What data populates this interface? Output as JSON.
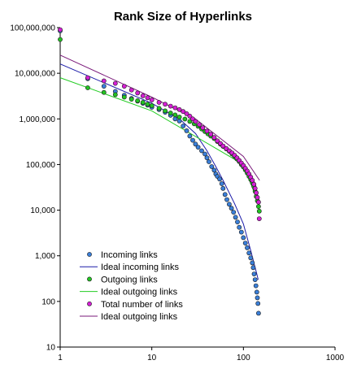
{
  "chart_data": {
    "type": "scatter",
    "title": "Rank Size of Hyperlinks",
    "xlabel": "",
    "ylabel": "",
    "x_scale": "log",
    "y_scale": "log",
    "xlim": [
      1,
      1000
    ],
    "ylim": [
      10,
      100000000
    ],
    "x_ticks": [
      "1",
      "10",
      "100",
      "1000"
    ],
    "y_ticks": [
      "10",
      "100",
      "1,000",
      "10,000",
      "100,000",
      "1,000,000",
      "10,000,000",
      "100,000,000"
    ],
    "grid": false,
    "legend_position": "bottom-left",
    "series": [
      {
        "name": "Incoming links",
        "kind": "points",
        "color": "#3a7fd9",
        "points": [
          [
            1,
            85000000
          ],
          [
            2,
            7600000
          ],
          [
            3,
            5200000
          ],
          [
            4,
            4000000
          ],
          [
            5,
            3300000
          ],
          [
            6,
            2800000
          ],
          [
            7,
            2450000
          ],
          [
            8,
            2200000
          ],
          [
            9,
            2000000
          ],
          [
            10,
            1800000
          ],
          [
            12,
            1600000
          ],
          [
            14,
            1400000
          ],
          [
            16,
            1200000
          ],
          [
            18,
            1000000
          ],
          [
            20,
            900000
          ],
          [
            22,
            700000
          ],
          [
            24,
            550000
          ],
          [
            26,
            420000
          ],
          [
            28,
            340000
          ],
          [
            30,
            280000
          ],
          [
            32,
            240000
          ],
          [
            35,
            200000
          ],
          [
            38,
            170000
          ],
          [
            40,
            140000
          ],
          [
            42,
            115000
          ],
          [
            45,
            90000
          ],
          [
            48,
            75000
          ],
          [
            50,
            62000
          ],
          [
            52,
            55000
          ],
          [
            55,
            48000
          ],
          [
            58,
            38000
          ],
          [
            60,
            30000
          ],
          [
            63,
            22000
          ],
          [
            66,
            17000
          ],
          [
            70,
            13500
          ],
          [
            74,
            11000
          ],
          [
            78,
            9000
          ],
          [
            82,
            7000
          ],
          [
            86,
            5500
          ],
          [
            90,
            4200
          ],
          [
            95,
            3300
          ],
          [
            100,
            2500
          ],
          [
            105,
            1900
          ],
          [
            110,
            1500
          ],
          [
            115,
            1150
          ],
          [
            120,
            900
          ],
          [
            125,
            700
          ],
          [
            128,
            550
          ],
          [
            131,
            400
          ],
          [
            134,
            300
          ],
          [
            137,
            220
          ],
          [
            140,
            160
          ],
          [
            142,
            120
          ],
          [
            144,
            90
          ],
          [
            146,
            55
          ]
        ]
      },
      {
        "name": "Ideal incoming links",
        "kind": "line",
        "color": "#1a1aa8",
        "points": [
          [
            1,
            16000000
          ],
          [
            10,
            2200000
          ],
          [
            20,
            1000000
          ],
          [
            30,
            480000
          ],
          [
            40,
            200000
          ],
          [
            50,
            90000
          ],
          [
            60,
            45000
          ],
          [
            80,
            14000
          ],
          [
            100,
            5000
          ],
          [
            120,
            1300
          ],
          [
            140,
            400
          ],
          [
            145,
            300
          ]
        ]
      },
      {
        "name": "Outgoing links",
        "kind": "points",
        "color": "#22c422",
        "points": [
          [
            1,
            55000000
          ],
          [
            2,
            4800000
          ],
          [
            3,
            3800000
          ],
          [
            4,
            3400000
          ],
          [
            5,
            3000000
          ],
          [
            6,
            2700000
          ],
          [
            7,
            2500000
          ],
          [
            8,
            2300000
          ],
          [
            9,
            2100000
          ],
          [
            10,
            1950000
          ],
          [
            12,
            1700000
          ],
          [
            14,
            1500000
          ],
          [
            16,
            1350000
          ],
          [
            18,
            1220000
          ],
          [
            20,
            1100000
          ],
          [
            23,
            990000
          ],
          [
            26,
            880000
          ],
          [
            29,
            780000
          ],
          [
            32,
            690000
          ],
          [
            35,
            600000
          ],
          [
            38,
            530000
          ],
          [
            41,
            470000
          ],
          [
            44,
            420000
          ],
          [
            48,
            370000
          ],
          [
            52,
            320000
          ],
          [
            56,
            280000
          ],
          [
            60,
            250000
          ],
          [
            65,
            220000
          ],
          [
            70,
            195000
          ],
          [
            75,
            170000
          ],
          [
            80,
            150000
          ],
          [
            85,
            132000
          ],
          [
            90,
            116000
          ],
          [
            95,
            100000
          ],
          [
            100,
            88000
          ],
          [
            105,
            76000
          ],
          [
            110,
            65000
          ],
          [
            115,
            55000
          ],
          [
            120,
            47000
          ],
          [
            125,
            40000
          ],
          [
            130,
            33000
          ],
          [
            134,
            26000
          ],
          [
            138,
            20000
          ],
          [
            142,
            16000
          ],
          [
            146,
            12000
          ],
          [
            149,
            9500
          ]
        ]
      },
      {
        "name": "Ideal outgoing links",
        "kind": "line",
        "color": "#22cc22",
        "points": [
          [
            1,
            8000000
          ],
          [
            10,
            1500000
          ],
          [
            100,
            100000
          ],
          [
            150,
            12000
          ]
        ]
      },
      {
        "name": "Total number of links",
        "kind": "points",
        "color": "#d61fd6",
        "points": [
          [
            1,
            90000000
          ],
          [
            2,
            8000000
          ],
          [
            3,
            6800000
          ],
          [
            4,
            6000000
          ],
          [
            5,
            5200000
          ],
          [
            6,
            4300000
          ],
          [
            7,
            3700000
          ],
          [
            8,
            3200000
          ],
          [
            9,
            2900000
          ],
          [
            10,
            2600000
          ],
          [
            12,
            2300000
          ],
          [
            14,
            2100000
          ],
          [
            16,
            1900000
          ],
          [
            18,
            1750000
          ],
          [
            20,
            1600000
          ],
          [
            22,
            1450000
          ],
          [
            24,
            1300000
          ],
          [
            26,
            1150000
          ],
          [
            28,
            1000000
          ],
          [
            30,
            880000
          ],
          [
            33,
            750000
          ],
          [
            36,
            640000
          ],
          [
            40,
            540000
          ],
          [
            44,
            460000
          ],
          [
            48,
            390000
          ],
          [
            52,
            330000
          ],
          [
            56,
            290000
          ],
          [
            60,
            255000
          ],
          [
            65,
            225000
          ],
          [
            70,
            200000
          ],
          [
            75,
            180000
          ],
          [
            80,
            160000
          ],
          [
            85,
            140000
          ],
          [
            90,
            123000
          ],
          [
            95,
            108000
          ],
          [
            100,
            95000
          ],
          [
            105,
            83000
          ],
          [
            110,
            72000
          ],
          [
            115,
            62000
          ],
          [
            120,
            53000
          ],
          [
            125,
            45000
          ],
          [
            130,
            37000
          ],
          [
            134,
            30000
          ],
          [
            138,
            24000
          ],
          [
            142,
            19000
          ],
          [
            146,
            15000
          ],
          [
            149,
            6500
          ]
        ]
      },
      {
        "name": "Ideal outgoing links",
        "kind": "line",
        "color": "#7a1a7a",
        "points": [
          [
            1,
            25000000
          ],
          [
            10,
            3000000
          ],
          [
            30,
            1000000
          ],
          [
            100,
            150000
          ],
          [
            150,
            45000
          ]
        ]
      }
    ]
  }
}
